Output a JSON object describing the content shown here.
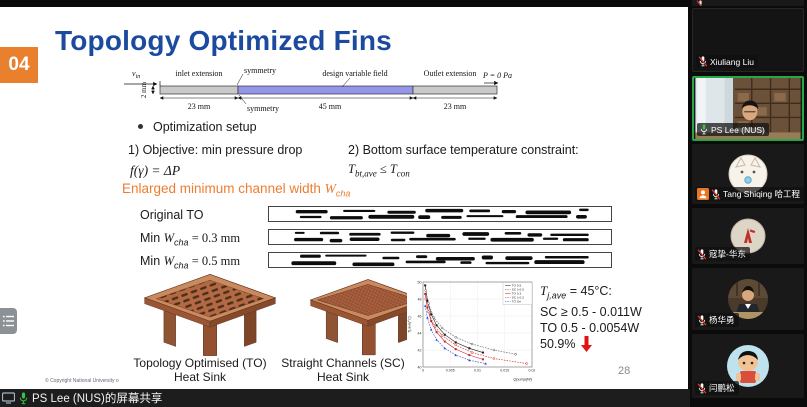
{
  "window": {
    "share_banner": "PS Lee (NUS)的屏幕共享"
  },
  "slide": {
    "badge": "04",
    "title": "Topology Optimized Fins",
    "page_number": "28",
    "copyright": "© Copyright National University o",
    "diagram": {
      "v_sym": "v",
      "v_sub": "in",
      "labels": {
        "inlet_extension": "inlet extension",
        "symmetry_top": "symmetry",
        "design_variable_field": "design variable field",
        "outlet_extension": "Outlet extension",
        "pressure_outlet": "P = 0 Pa",
        "dim_left": "2 mm",
        "dim_inlet": "23 mm",
        "symmetry_bottom": "symmetry",
        "dim_design": "45 mm",
        "dim_outlet": "23 mm"
      }
    },
    "setup": {
      "bullet": "Optimization setup",
      "item1_title": "1) Objective: min pressure drop",
      "item1_formula": "f(γ) = ΔP",
      "item2_title": "2) Bottom surface temperature constraint:",
      "item2_formula": {
        "t1": "T",
        "s1": "bt,ave",
        "op": " ≤ ",
        "t2": "T",
        "s2": "con"
      }
    },
    "channel": {
      "heading_pre": "Enlarged minimum channel width ",
      "heading_sym": "W",
      "heading_sub": "cha",
      "rows": [
        {
          "pre": "Original TO",
          "sym": "",
          "sub": "",
          "post": ""
        },
        {
          "pre": "Min ",
          "sym": "W",
          "sub": "cha",
          "post": " = 0.3 mm"
        },
        {
          "pre": "Min ",
          "sym": "W",
          "sub": "cha",
          "post": " = 0.5 mm"
        }
      ]
    },
    "captions": {
      "to1": "Topology Optimised (TO)",
      "to2": "Heat Sink",
      "sc1": "Straight Channels (SC)",
      "sc2": "Heat Sink"
    },
    "results": {
      "t": "T",
      "s": "j,ave",
      "rest": " = 45°C:",
      "line2": "SC ≥ 0.5 - 0.011W",
      "line3": "TO 0.5 - 0.0054W",
      "line4": "50.9%"
    }
  },
  "chart_data": {
    "type": "line",
    "title": "",
    "xlabel": "Qpump(W)",
    "ylabel": "Tj,ave(°C)",
    "xlim": [
      0,
      0.02
    ],
    "ylim": [
      40,
      50
    ],
    "x_ticks": [
      0,
      0.005,
      0.01,
      0.015,
      0.02
    ],
    "y_ticks": [
      40,
      42,
      44,
      46,
      48,
      50
    ],
    "grid": true,
    "legend_position": "top-right",
    "series": [
      {
        "name": "TO 0.5",
        "color": "#1a1a1a",
        "marker": "square",
        "dash": false,
        "x": [
          0.0004,
          0.0008,
          0.0015,
          0.0025,
          0.004,
          0.006,
          0.0085,
          0.011
        ],
        "y": [
          49.6,
          47.8,
          46.2,
          44.9,
          43.8,
          42.9,
          42.2,
          41.7
        ]
      },
      {
        "name": "SC ≥ 0.5",
        "color": "#555555",
        "marker": "circle-open",
        "dash": true,
        "x": [
          0.0005,
          0.001,
          0.002,
          0.0035,
          0.006,
          0.009,
          0.013,
          0.017
        ],
        "y": [
          49.0,
          47.5,
          45.8,
          44.6,
          43.5,
          42.7,
          42.0,
          41.5
        ]
      },
      {
        "name": "TO 0.3",
        "color": "#cc2222",
        "marker": "square",
        "dash": false,
        "x": [
          0.0004,
          0.0008,
          0.0015,
          0.0025,
          0.004,
          0.006,
          0.0085,
          0.011
        ],
        "y": [
          48.6,
          47.0,
          45.4,
          44.1,
          43.0,
          42.1,
          41.4,
          40.9
        ]
      },
      {
        "name": "SC ≥ 0.3",
        "color": "#cc2222",
        "marker": "circle-open",
        "dash": true,
        "x": [
          0.0005,
          0.001,
          0.002,
          0.0035,
          0.006,
          0.009,
          0.013,
          0.019
        ],
        "y": [
          48.0,
          46.5,
          44.9,
          43.7,
          42.6,
          41.7,
          41.0,
          40.4
        ]
      },
      {
        "name": "TO Ori",
        "color": "#2244cc",
        "marker": "triangle",
        "dash": true,
        "x": [
          0.0004,
          0.0008,
          0.0015,
          0.0025,
          0.004,
          0.006,
          0.0085,
          0.0115
        ],
        "y": [
          47.2,
          45.8,
          44.4,
          43.2,
          42.2,
          41.4,
          40.8,
          40.4
        ]
      }
    ]
  },
  "sidebar": {
    "participants": [
      {
        "name": "Xiuliang Liu",
        "muted": true,
        "video": false
      },
      {
        "name": "PS Lee (NUS)",
        "muted": false,
        "video": true,
        "active_speaker": true
      },
      {
        "name": "Tang Shiqing 哈工程",
        "muted": true,
        "video": false,
        "badge": true
      },
      {
        "name": "寇挚-华东",
        "muted": true,
        "video": false
      },
      {
        "name": "杨华勇",
        "muted": true,
        "video": false
      },
      {
        "name": "闫鹏松",
        "muted": true,
        "video": false
      }
    ]
  }
}
